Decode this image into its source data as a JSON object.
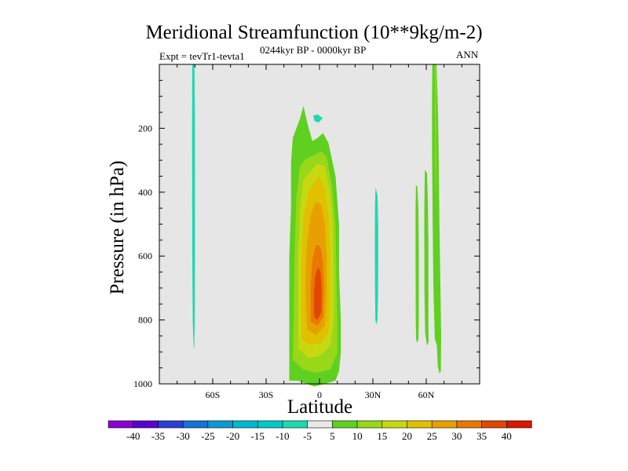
{
  "chart_data": {
    "type": "heatmap",
    "title": "Meridional Streamfunction (10**9kg/m-2)",
    "left_subtitle": "Expt = tevTr1-tevta1",
    "center_subtitle": "0244kyr BP - 0000kyr BP",
    "right_subtitle": "ANN",
    "xlabel": "Latitude",
    "ylabel": "Pressure (in hPa)",
    "xlim": [
      -90,
      90
    ],
    "ylim": [
      1000,
      0
    ],
    "x_ticks": [
      {
        "value": -60,
        "label": "60S"
      },
      {
        "value": -30,
        "label": "30S"
      },
      {
        "value": 0,
        "label": "0"
      },
      {
        "value": 30,
        "label": "30N"
      },
      {
        "value": 60,
        "label": "60N"
      }
    ],
    "y_ticks": [
      {
        "value": 200,
        "label": "200"
      },
      {
        "value": 400,
        "label": "400"
      },
      {
        "value": 600,
        "label": "600"
      },
      {
        "value": 800,
        "label": "800"
      },
      {
        "value": 1000,
        "label": "1000"
      }
    ],
    "colorbar": {
      "levels": [
        -40,
        -35,
        -30,
        -25,
        -20,
        -15,
        -10,
        -5,
        5,
        10,
        15,
        20,
        25,
        30,
        35,
        40
      ],
      "colors": [
        "#8a00d4",
        "#5a00d0",
        "#2a3fd8",
        "#1672d4",
        "#0a9ad0",
        "#00b6d0",
        "#00c8c8",
        "#1ed8b0",
        "#e8e8e8",
        "#60d020",
        "#98d818",
        "#c8d810",
        "#e0c000",
        "#e8a000",
        "#e87800",
        "#e04800",
        "#d81800"
      ]
    },
    "features": [
      {
        "name": "tropical-cell",
        "points": [
          [
            -17,
            990
          ],
          [
            -12,
            990
          ],
          [
            -8,
            998
          ],
          [
            -3,
            1008
          ],
          [
            3,
            1000
          ],
          [
            9,
            990
          ],
          [
            11,
            960
          ],
          [
            12,
            900
          ],
          [
            12,
            800
          ],
          [
            11,
            650
          ],
          [
            11,
            500
          ],
          [
            9,
            350
          ],
          [
            5,
            245
          ],
          [
            2,
            215
          ],
          [
            -1,
            230
          ],
          [
            -4,
            240
          ],
          [
            -7,
            180
          ],
          [
            -9,
            130
          ],
          [
            -11,
            170
          ],
          [
            -15,
            230
          ],
          [
            -16,
            310
          ],
          [
            -16,
            450
          ],
          [
            -17,
            600
          ],
          [
            -17,
            800
          ]
        ],
        "level": 7.5
      },
      {
        "name": "tropical-cell",
        "points": [
          [
            -15,
            925
          ],
          [
            -9,
            955
          ],
          [
            -2,
            965
          ],
          [
            6,
            955
          ],
          [
            10,
            905
          ],
          [
            10,
            800
          ],
          [
            9.5,
            650
          ],
          [
            9,
            500
          ],
          [
            7,
            380
          ],
          [
            4,
            290
          ],
          [
            1,
            272
          ],
          [
            -3,
            283
          ],
          [
            -8,
            298
          ],
          [
            -11,
            320
          ],
          [
            -13,
            420
          ],
          [
            -14,
            600
          ],
          [
            -14.5,
            800
          ]
        ],
        "level": 12.5
      },
      {
        "name": "tropical-cell",
        "points": [
          [
            -12,
            890
          ],
          [
            -6,
            920
          ],
          [
            1,
            910
          ],
          [
            6,
            880
          ],
          [
            8,
            800
          ],
          [
            8,
            650
          ],
          [
            7.5,
            500
          ],
          [
            6,
            400
          ],
          [
            3,
            320
          ],
          [
            -1,
            310
          ],
          [
            -5,
            335
          ],
          [
            -9,
            360
          ],
          [
            -11,
            450
          ],
          [
            -12,
            600
          ],
          [
            -12,
            800
          ]
        ],
        "level": 17.5
      },
      {
        "name": "tropical-cell",
        "points": [
          [
            -10,
            860
          ],
          [
            -5,
            880
          ],
          [
            1,
            870
          ],
          [
            5,
            840
          ],
          [
            6,
            750
          ],
          [
            6,
            600
          ],
          [
            5,
            470
          ],
          [
            3,
            390
          ],
          [
            0,
            350
          ],
          [
            -3,
            370
          ],
          [
            -6,
            400
          ],
          [
            -9,
            480
          ],
          [
            -10,
            600
          ],
          [
            -10,
            750
          ]
        ],
        "level": 22.5
      },
      {
        "name": "tropical-cell",
        "points": [
          [
            -7,
            830
          ],
          [
            -2,
            848
          ],
          [
            3,
            818
          ],
          [
            4,
            720
          ],
          [
            4,
            600
          ],
          [
            3,
            500
          ],
          [
            1,
            440
          ],
          [
            -2,
            430
          ],
          [
            -5,
            470
          ],
          [
            -7,
            560
          ],
          [
            -8,
            680
          ]
        ],
        "level": 27.5
      },
      {
        "name": "tropical-cell",
        "points": [
          [
            -5,
            805
          ],
          [
            -1,
            818
          ],
          [
            2,
            790
          ],
          [
            2.5,
            700
          ],
          [
            2,
            620
          ],
          [
            0.5,
            570
          ],
          [
            -2,
            565
          ],
          [
            -4,
            610
          ],
          [
            -5,
            690
          ]
        ],
        "level": 32.5
      },
      {
        "name": "tropical-cell",
        "points": [
          [
            -3,
            790
          ],
          [
            -1,
            800
          ],
          [
            1,
            775
          ],
          [
            1.2,
            700
          ],
          [
            0.5,
            645
          ],
          [
            -1,
            635
          ],
          [
            -2.5,
            665
          ],
          [
            -3.2,
            720
          ]
        ],
        "level": 37.5
      },
      {
        "name": "cyan-strip-60s",
        "points": [
          [
            -71.5,
            0
          ],
          [
            -70.3,
            0
          ],
          [
            -70.0,
            200
          ],
          [
            -70.0,
            600
          ],
          [
            -70.1,
            810
          ],
          [
            -70.4,
            890
          ],
          [
            -70.7,
            885
          ],
          [
            -71.2,
            810
          ],
          [
            -71.5,
            600
          ],
          [
            -71.6,
            200
          ]
        ],
        "level": -7.5
      },
      {
        "name": "cyan-blob-eq",
        "points": [
          [
            -3.5,
            160
          ],
          [
            -1,
            157
          ],
          [
            1.8,
            168
          ],
          [
            -0.5,
            182
          ],
          [
            -2.8,
            178
          ]
        ],
        "level": -7.5
      },
      {
        "name": "cyan-strip-30n",
        "points": [
          [
            31.5,
            385
          ],
          [
            32.6,
            410
          ],
          [
            33.0,
            500
          ],
          [
            33.0,
            620
          ],
          [
            32.9,
            720
          ],
          [
            32.6,
            800
          ],
          [
            32.0,
            815
          ],
          [
            31.4,
            800
          ],
          [
            31.2,
            700
          ],
          [
            31.1,
            560
          ],
          [
            31.2,
            440
          ]
        ],
        "level": -7.5
      },
      {
        "name": "green-strip-55n",
        "points": [
          [
            54.2,
            378
          ],
          [
            55.0,
            383
          ],
          [
            55.6,
            450
          ],
          [
            55.8,
            600
          ],
          [
            55.8,
            800
          ],
          [
            55.6,
            860
          ],
          [
            55.0,
            872
          ],
          [
            54.3,
            860
          ],
          [
            54.1,
            800
          ],
          [
            54.0,
            600
          ],
          [
            54.0,
            450
          ]
        ],
        "level": 7.5
      },
      {
        "name": "green-strip-60n",
        "points": [
          [
            59.2,
            330
          ],
          [
            60.4,
            340
          ],
          [
            60.9,
            420
          ],
          [
            61.2,
            560
          ],
          [
            61.2,
            800
          ],
          [
            61.3,
            870
          ],
          [
            60.4,
            880
          ],
          [
            59.4,
            840
          ],
          [
            59.0,
            700
          ],
          [
            58.9,
            500
          ],
          [
            59.0,
            420
          ]
        ],
        "level": 7.5
      },
      {
        "name": "green-strip-65n",
        "points": [
          [
            63.4,
            0
          ],
          [
            65.8,
            0
          ],
          [
            66.6,
            150
          ],
          [
            67.0,
            300
          ],
          [
            67.4,
            500
          ],
          [
            68.0,
            700
          ],
          [
            68.4,
            850
          ],
          [
            68.2,
            960
          ],
          [
            67.4,
            968
          ],
          [
            66.5,
            945
          ],
          [
            66.0,
            880
          ],
          [
            64.8,
            860
          ],
          [
            64.0,
            700
          ],
          [
            63.6,
            500
          ],
          [
            63.3,
            300
          ],
          [
            63.2,
            150
          ]
        ],
        "level": 7.5
      },
      {
        "name": "green-strip-65n-inner",
        "points": [
          [
            64.9,
            0
          ],
          [
            65.5,
            0
          ],
          [
            65.6,
            150
          ],
          [
            65.7,
            350
          ],
          [
            65.5,
            420
          ],
          [
            65.1,
            360
          ],
          [
            64.9,
            150
          ]
        ],
        "level": 12.5
      }
    ]
  }
}
